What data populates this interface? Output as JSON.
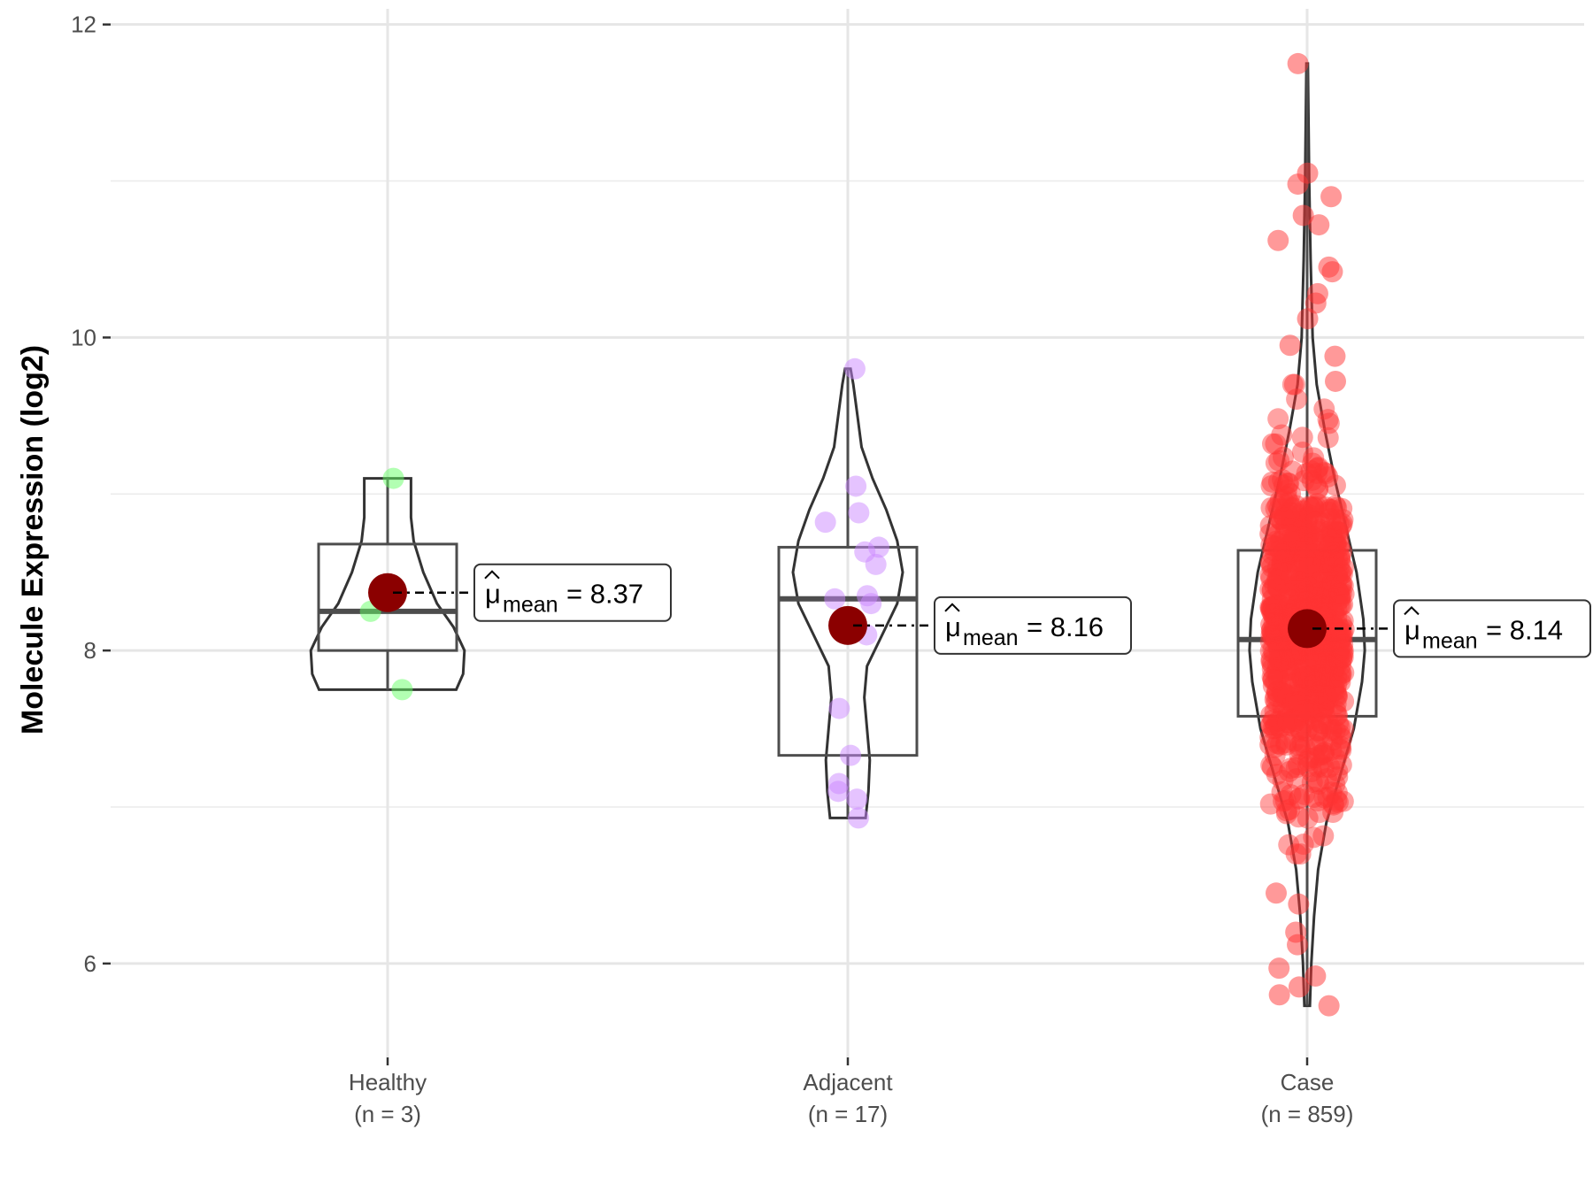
{
  "chart_data": {
    "type": "violin",
    "ylabel": "Molecule Expression (log2)",
    "xlabel": "",
    "ylim": [
      5.4,
      12.1
    ],
    "yticks": [
      6,
      8,
      10,
      12
    ],
    "grid": true,
    "groups": [
      {
        "name": "Healthy",
        "n_label": "(n = 3)",
        "color": "#66ff66",
        "violin_range": [
          7.75,
          9.1
        ],
        "box": {
          "q1": 8.0,
          "median": 8.25,
          "q3": 8.68,
          "lower_whisker": 7.75,
          "upper_whisker": 9.1
        },
        "mean": 8.37,
        "mean_label": "= 8.37",
        "points": [
          9.1,
          8.25,
          7.75
        ],
        "violin_shape": [
          [
            7.75,
            0.5
          ],
          [
            7.85,
            0.55
          ],
          [
            8.0,
            0.56
          ],
          [
            8.15,
            0.48
          ],
          [
            8.3,
            0.36
          ],
          [
            8.5,
            0.26
          ],
          [
            8.7,
            0.19
          ],
          [
            8.85,
            0.17
          ],
          [
            9.0,
            0.17
          ],
          [
            9.1,
            0.17
          ]
        ]
      },
      {
        "name": "Adjacent",
        "n_label": "(n = 17)",
        "color": "#cc88ff",
        "violin_range": [
          6.93,
          9.8
        ],
        "box": {
          "q1": 7.33,
          "median": 8.33,
          "q3": 8.66,
          "lower_whisker": 6.93,
          "upper_whisker": 9.8
        },
        "mean": 8.16,
        "mean_label": "= 8.16",
        "points": [
          9.8,
          9.05,
          8.88,
          8.82,
          8.66,
          8.63,
          8.55,
          8.35,
          8.33,
          8.3,
          7.63,
          7.33,
          7.15,
          7.1,
          7.05,
          6.93,
          8.1
        ],
        "violin_shape": [
          [
            6.93,
            0.13
          ],
          [
            7.1,
            0.15
          ],
          [
            7.3,
            0.16
          ],
          [
            7.5,
            0.14
          ],
          [
            7.7,
            0.12
          ],
          [
            7.9,
            0.14
          ],
          [
            8.1,
            0.25
          ],
          [
            8.3,
            0.36
          ],
          [
            8.5,
            0.4
          ],
          [
            8.7,
            0.36
          ],
          [
            8.9,
            0.28
          ],
          [
            9.1,
            0.18
          ],
          [
            9.3,
            0.1
          ],
          [
            9.5,
            0.07
          ],
          [
            9.7,
            0.04
          ],
          [
            9.8,
            0.02
          ]
        ]
      },
      {
        "name": "Case",
        "n_label": "(n = 859)",
        "color": "#ff3333",
        "violin_range": [
          5.73,
          11.75
        ],
        "box": {
          "q1": 7.58,
          "median": 8.07,
          "q3": 8.64,
          "lower_whisker": 5.73,
          "upper_whisker": 11.75
        },
        "mean": 8.14,
        "mean_label": "= 8.14",
        "points_summary": {
          "count": 859,
          "mean": 8.14,
          "sd": 0.7,
          "outliers": [
            11.75,
            11.05,
            10.98,
            10.9,
            10.78,
            10.72,
            10.62,
            10.45,
            10.42,
            10.28,
            10.22,
            10.12,
            9.95,
            9.88,
            9.72,
            6.45,
            6.38,
            6.2,
            6.12,
            5.97,
            5.92,
            5.85,
            5.8,
            5.73
          ]
        },
        "violin_shape": [
          [
            5.73,
            0.02
          ],
          [
            6.0,
            0.03
          ],
          [
            6.3,
            0.05
          ],
          [
            6.6,
            0.08
          ],
          [
            6.9,
            0.14
          ],
          [
            7.2,
            0.24
          ],
          [
            7.5,
            0.34
          ],
          [
            7.8,
            0.4
          ],
          [
            8.0,
            0.42
          ],
          [
            8.2,
            0.41
          ],
          [
            8.5,
            0.36
          ],
          [
            8.8,
            0.28
          ],
          [
            9.1,
            0.2
          ],
          [
            9.4,
            0.13
          ],
          [
            9.7,
            0.07
          ],
          [
            10.0,
            0.04
          ],
          [
            10.5,
            0.025
          ],
          [
            11.0,
            0.015
          ],
          [
            11.75,
            0.005
          ]
        ]
      }
    ]
  }
}
